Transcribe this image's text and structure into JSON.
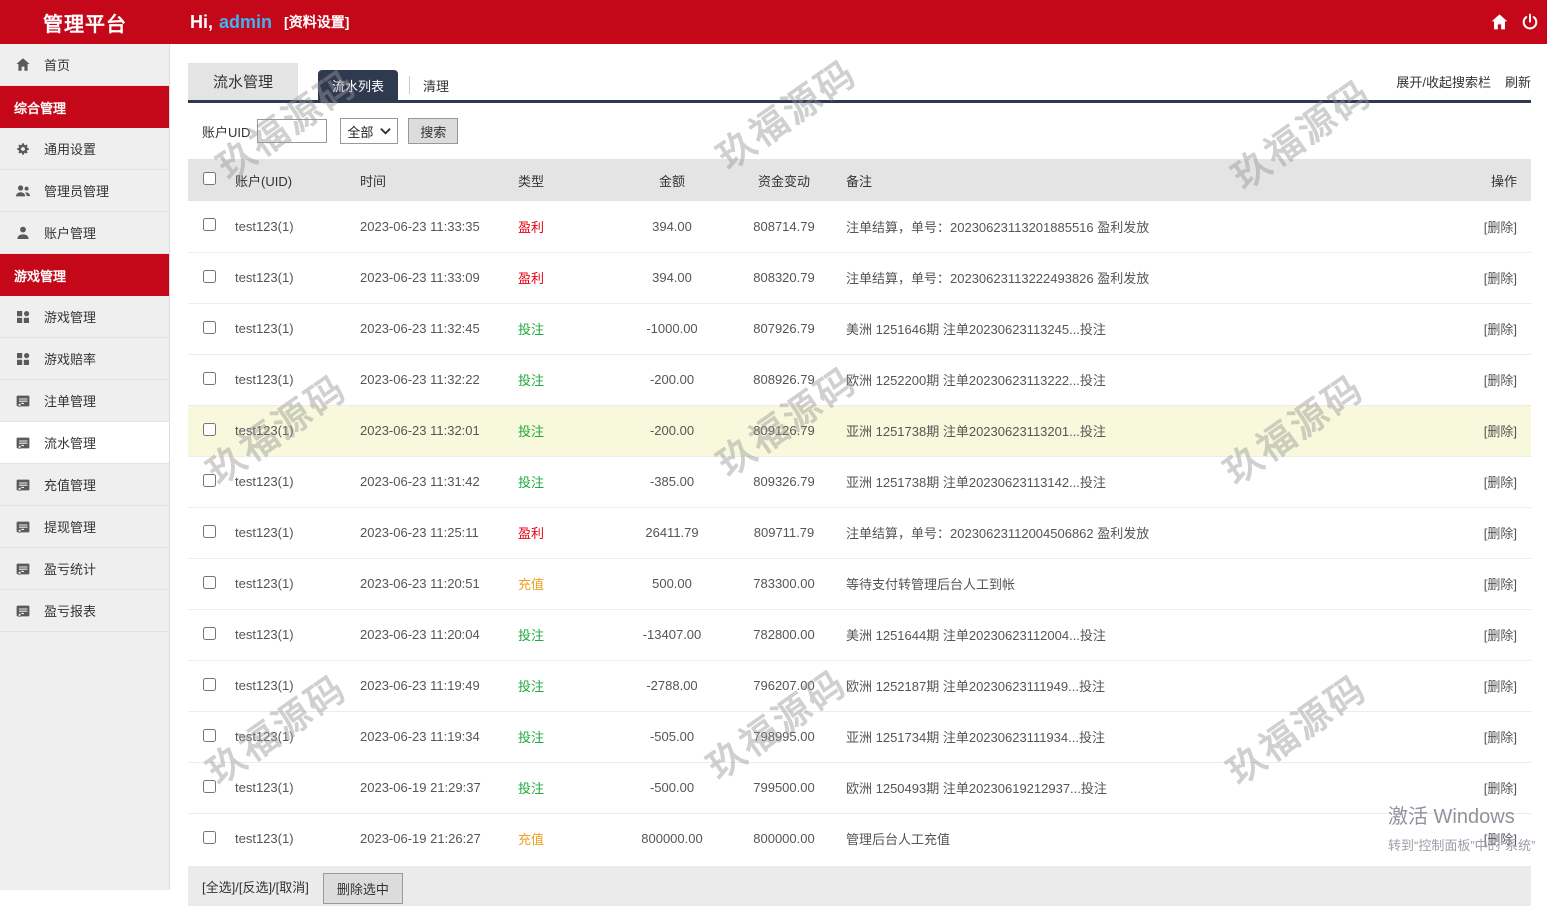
{
  "theme": {
    "brand_red": "#c4081a",
    "tab_navy": "#2f3a50",
    "profit_red": "#e60012",
    "bet_green": "#1fa93c",
    "recharge_orange": "#f0a020",
    "username_blue": "#3eb4f2",
    "highlight_row": "#f8f9dc"
  },
  "topbar": {
    "title": "管理平台",
    "greeting_prefix": "Hi,",
    "username": "admin",
    "profile_link": "[资料设置]"
  },
  "sidebar": {
    "items": [
      {
        "type": "item",
        "label": "首页",
        "icon": "home-icon"
      },
      {
        "type": "section",
        "label": "综合管理"
      },
      {
        "type": "item",
        "label": "通用设置",
        "icon": "gear-icon"
      },
      {
        "type": "item",
        "label": "管理员管理",
        "icon": "admins-icon"
      },
      {
        "type": "item",
        "label": "账户管理",
        "icon": "user-icon"
      },
      {
        "type": "section",
        "label": "游戏管理"
      },
      {
        "type": "item",
        "label": "游戏管理",
        "icon": "grid-icon"
      },
      {
        "type": "item",
        "label": "游戏赔率",
        "icon": "grid-icon"
      },
      {
        "type": "item",
        "label": "注单管理",
        "icon": "report-icon"
      },
      {
        "type": "item",
        "label": "流水管理",
        "icon": "report-icon",
        "active": true
      },
      {
        "type": "item",
        "label": "充值管理",
        "icon": "report-icon"
      },
      {
        "type": "item",
        "label": "提现管理",
        "icon": "report-icon"
      },
      {
        "type": "item",
        "label": "盈亏统计",
        "icon": "report-icon"
      },
      {
        "type": "item",
        "label": "盈亏报表",
        "icon": "report-icon"
      }
    ]
  },
  "toolbar": {
    "module_tab": "流水管理",
    "tabs": [
      "流水列表",
      "清理"
    ],
    "right_links": [
      "展开/收起搜索栏",
      "刷新"
    ]
  },
  "search": {
    "label": "账户UID",
    "input_value": "",
    "select_value": "全部",
    "button": "搜索"
  },
  "table": {
    "headers": [
      "账户(UID)",
      "时间",
      "类型",
      "金额",
      "资金变动",
      "备注",
      "操作"
    ],
    "rows": [
      {
        "account": "test123(1)",
        "time": "2023-06-23 11:33:35",
        "type": "盈利",
        "type_key": "profit",
        "amount": "394.00",
        "balance": "808714.79",
        "remark": "注单结算，单号：20230623113201885516 盈利发放",
        "action": "[删除]",
        "highlight": false
      },
      {
        "account": "test123(1)",
        "time": "2023-06-23 11:33:09",
        "type": "盈利",
        "type_key": "profit",
        "amount": "394.00",
        "balance": "808320.79",
        "remark": "注单结算，单号：20230623113222493826 盈利发放",
        "action": "[删除]",
        "highlight": false
      },
      {
        "account": "test123(1)",
        "time": "2023-06-23 11:32:45",
        "type": "投注",
        "type_key": "bet",
        "amount": "-1000.00",
        "balance": "807926.79",
        "remark": "美洲 1251646期 注单20230623113245...投注",
        "action": "[删除]",
        "highlight": false
      },
      {
        "account": "test123(1)",
        "time": "2023-06-23 11:32:22",
        "type": "投注",
        "type_key": "bet",
        "amount": "-200.00",
        "balance": "808926.79",
        "remark": "欧洲 1252200期 注单20230623113222...投注",
        "action": "[删除]",
        "highlight": false
      },
      {
        "account": "test123(1)",
        "time": "2023-06-23 11:32:01",
        "type": "投注",
        "type_key": "bet",
        "amount": "-200.00",
        "balance": "809126.79",
        "remark": "亚洲 1251738期 注单20230623113201...投注",
        "action": "[删除]",
        "highlight": true
      },
      {
        "account": "test123(1)",
        "time": "2023-06-23 11:31:42",
        "type": "投注",
        "type_key": "bet",
        "amount": "-385.00",
        "balance": "809326.79",
        "remark": "亚洲 1251738期 注单20230623113142...投注",
        "action": "[删除]",
        "highlight": false
      },
      {
        "account": "test123(1)",
        "time": "2023-06-23 11:25:11",
        "type": "盈利",
        "type_key": "profit",
        "amount": "26411.79",
        "balance": "809711.79",
        "remark": "注单结算，单号：20230623112004506862 盈利发放",
        "action": "[删除]",
        "highlight": false
      },
      {
        "account": "test123(1)",
        "time": "2023-06-23 11:20:51",
        "type": "充值",
        "type_key": "recharge",
        "amount": "500.00",
        "balance": "783300.00",
        "remark": "等待支付转管理后台人工到帐",
        "action": "[删除]",
        "highlight": false
      },
      {
        "account": "test123(1)",
        "time": "2023-06-23 11:20:04",
        "type": "投注",
        "type_key": "bet",
        "amount": "-13407.00",
        "balance": "782800.00",
        "remark": "美洲 1251644期 注单20230623112004...投注",
        "action": "[删除]",
        "highlight": false
      },
      {
        "account": "test123(1)",
        "time": "2023-06-23 11:19:49",
        "type": "投注",
        "type_key": "bet",
        "amount": "-2788.00",
        "balance": "796207.00",
        "remark": "欧洲 1252187期 注单20230623111949...投注",
        "action": "[删除]",
        "highlight": false
      },
      {
        "account": "test123(1)",
        "time": "2023-06-23 11:19:34",
        "type": "投注",
        "type_key": "bet",
        "amount": "-505.00",
        "balance": "798995.00",
        "remark": "亚洲 1251734期 注单20230623111934...投注",
        "action": "[删除]",
        "highlight": false
      },
      {
        "account": "test123(1)",
        "time": "2023-06-19 21:29:37",
        "type": "投注",
        "type_key": "bet",
        "amount": "-500.00",
        "balance": "799500.00",
        "remark": "欧洲 1250493期 注单20230619212937...投注",
        "action": "[删除]",
        "highlight": false
      },
      {
        "account": "test123(1)",
        "time": "2023-06-19 21:26:27",
        "type": "充值",
        "type_key": "recharge",
        "amount": "800000.00",
        "balance": "800000.00",
        "remark": "管理后台人工充值",
        "action": "[删除]",
        "highlight": false
      }
    ]
  },
  "footer": {
    "select_links": "[全选]/[反选]/[取消]",
    "delete_button": "删除选中"
  },
  "watermark_text": "玖福源码",
  "activation": {
    "line1": "激活 Windows",
    "line2": "转到“控制面板”中的“系统”"
  }
}
